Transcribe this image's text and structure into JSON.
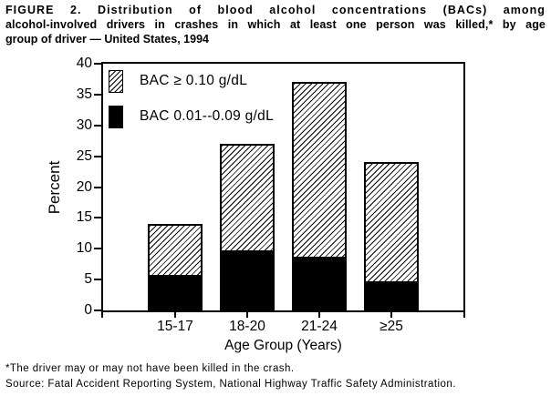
{
  "figure": {
    "title_lines": [
      "FIGURE 2. Distribution of blood alcohol concentrations (BACs) among",
      "alcohol-involved drivers in crashes in which at least one person was killed,* by age",
      "group of driver — United States, 1994"
    ],
    "footnote": "*The driver may or may not have been killed in the crash.",
    "source": "Source: Fatal Accident Reporting System, National Highway Traffic Safety Administration."
  },
  "chart_data": {
    "type": "bar",
    "stacked": true,
    "title": "FIGURE 2. Distribution of blood alcohol concentrations (BACs) among alcohol-involved drivers in crashes in which at least one person was killed,* by age group of driver — United States, 1994",
    "categories": [
      "15-17",
      "18-20",
      "21-24",
      "≥25"
    ],
    "series": [
      {
        "name": "BAC 0.01--0.09 g/dL",
        "fill": "solid-black",
        "values": [
          6,
          10,
          9,
          5
        ]
      },
      {
        "name": "BAC ≥ 0.10 g/dL",
        "fill": "diagonal-hatch",
        "values": [
          8,
          17,
          28,
          19
        ]
      }
    ],
    "xlabel": "Age Group (Years)",
    "ylabel": "Percent",
    "ylim": [
      0,
      40
    ],
    "yticks": [
      0,
      5,
      10,
      15,
      20,
      25,
      30,
      35,
      40
    ],
    "grid": false,
    "legend": [
      {
        "label": "BAC ≥ 0.10 g/dL",
        "fill": "diagonal-hatch"
      },
      {
        "label": "BAC 0.01--0.09 g/dL",
        "fill": "solid-black"
      }
    ],
    "legend_position": "top-left-inside",
    "colors": {
      "foreground": "#000000",
      "background": "#ffffff"
    }
  }
}
